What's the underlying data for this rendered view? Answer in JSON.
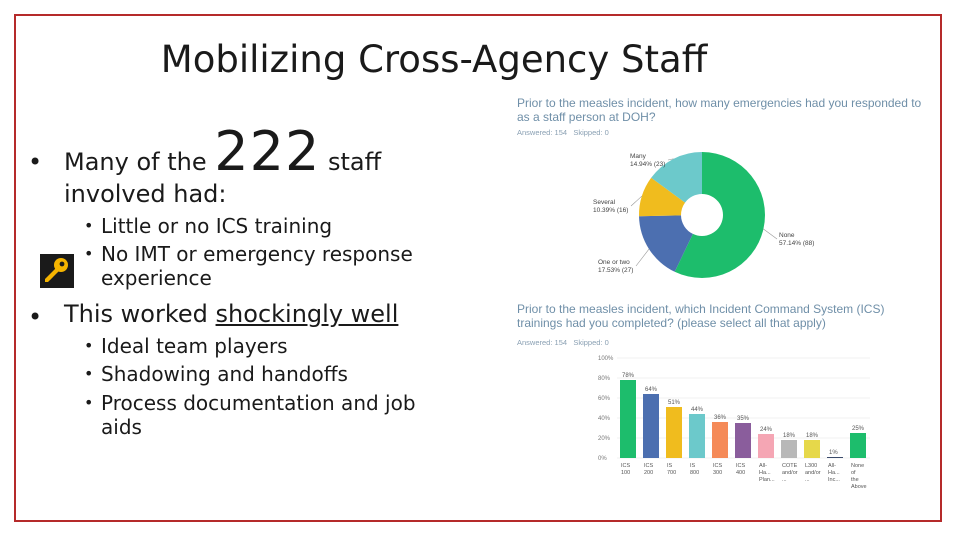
{
  "slide": {
    "title": "Mobilizing Cross-Agency Staff",
    "bullet1": {
      "prefix": "Many of the",
      "number": "222",
      "suffix": "staff",
      "line2": "involved had:",
      "subs": [
        "Little or no ICS training",
        "No IMT or emergency response",
        "experience"
      ]
    },
    "bullet2": {
      "prefix": "This worked",
      "underlined": "shockingly well",
      "subs": [
        "Ideal team players",
        "Shadowing and handoffs",
        "Process documentation and job",
        "aids"
      ]
    },
    "icon": "key-icon"
  },
  "chart1": {
    "question_line1": "Prior to the measles incident, how many emergencies had you responded to",
    "question_line2": "as a staff person at DOH?",
    "answered": "Answered: 154",
    "skipped": "Skipped: 0"
  },
  "chart2": {
    "question_line1": "Prior to the measles incident, which Incident Command System (ICS)",
    "question_line2": "trainings had you completed? (please select all that apply)",
    "answered": "Answered: 154",
    "skipped": "Skipped: 0"
  },
  "chart_data": [
    {
      "type": "pie",
      "slices": [
        {
          "label": "None",
          "value_label": "57.14% (88)",
          "value": 57.14,
          "color": "#1dbd6c"
        },
        {
          "label": "One or two",
          "value_label": "17.53% (27)",
          "value": 17.53,
          "color": "#4c6fb0"
        },
        {
          "label": "Several",
          "value_label": "10.39% (16)",
          "value": 10.39,
          "color": "#f0bc1e"
        },
        {
          "label": "Many",
          "value_label": "14.94% (23)",
          "value": 14.94,
          "color": "#6cc9cb"
        }
      ]
    },
    {
      "type": "bar",
      "ylim": [
        0,
        100
      ],
      "yticks": [
        "100%",
        "80%",
        "60%",
        "40%",
        "20%",
        "0%"
      ],
      "bars": [
        {
          "label": [
            "ICS",
            "100"
          ],
          "value": 78,
          "value_label": "78%",
          "color": "#1dbd6c"
        },
        {
          "label": [
            "ICS",
            "200"
          ],
          "value": 64,
          "value_label": "64%",
          "color": "#4c6fb0"
        },
        {
          "label": [
            "IS",
            "700"
          ],
          "value": 51,
          "value_label": "51%",
          "color": "#f0bc1e"
        },
        {
          "label": [
            "IS",
            "800"
          ],
          "value": 44,
          "value_label": "44%",
          "color": "#6cc9cb"
        },
        {
          "label": [
            "ICS",
            "300"
          ],
          "value": 36,
          "value_label": "36%",
          "color": "#f58a58"
        },
        {
          "label": [
            "ICS",
            "400"
          ],
          "value": 35,
          "value_label": "35%",
          "color": "#8a5d9c"
        },
        {
          "label": [
            "All-",
            "Ha...",
            "Plan..."
          ],
          "value": 24,
          "value_label": "24%",
          "color": "#f5a6b4"
        },
        {
          "label": [
            "COTE",
            "and/or",
            "..."
          ],
          "value": 18,
          "value_label": "18%",
          "color": "#b8b8b8"
        },
        {
          "label": [
            "L300",
            "and/or",
            "..."
          ],
          "value": 18,
          "value_label": "18%",
          "color": "#e6d84a"
        },
        {
          "label": [
            "All-",
            "Ha...",
            "Inc..."
          ],
          "value": 1,
          "value_label": "1%",
          "color": "#3a4a6a"
        },
        {
          "label": [
            "None",
            "of",
            "the",
            "Above"
          ],
          "value": 25,
          "value_label": "25%",
          "color": "#1dbd6c"
        }
      ]
    }
  ]
}
